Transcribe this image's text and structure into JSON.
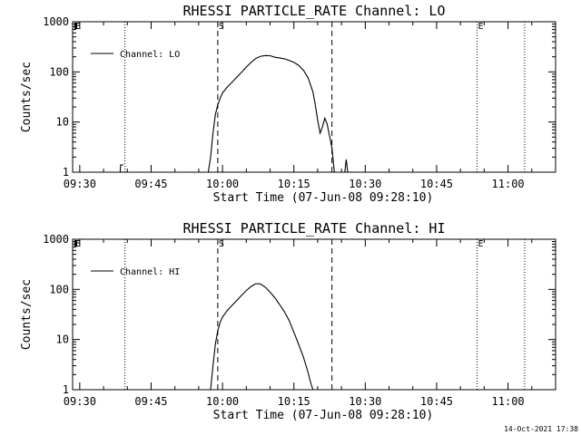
{
  "chart_data": [
    {
      "type": "line",
      "title": "RHESSI PARTICLE_RATE Channel: LO",
      "xlabel": "Start Time (07-Jun-08 09:28:10)",
      "ylabel": "Counts/sec",
      "yscale": "log",
      "ylim": [
        1,
        1000
      ],
      "y_ticks": [
        "1",
        "10",
        "100",
        "1000"
      ],
      "xlim_minutes": [
        -1.5,
        100
      ],
      "x_ticks": [
        "09:30",
        "09:45",
        "10:00",
        "10:15",
        "10:30",
        "10:45",
        "11:00"
      ],
      "legend": {
        "label": "Channel: LO",
        "position": "top-left"
      },
      "markers": [
        {
          "minute": 9.5,
          "style": "dotted",
          "label": ""
        },
        {
          "minute": 29,
          "style": "dashed",
          "label": "S"
        },
        {
          "minute": 53,
          "style": "dashed",
          "label": ""
        },
        {
          "minute": 83.5,
          "style": "dotted",
          "label": "E"
        },
        {
          "minute": 93.5,
          "style": "dotted",
          "label": ""
        }
      ],
      "corner_labels": [
        "E",
        "E",
        "E"
      ],
      "series": [
        {
          "name": "Channel: LO",
          "segments": [
            {
              "minutes": [
                8.5,
                8.6,
                9.1
              ],
              "values": [
                1,
                1.4,
                1.4
              ]
            },
            {
              "minutes": [
                27,
                27.5,
                28,
                28.5,
                29,
                29.5,
                30,
                31,
                32,
                33,
                34,
                35,
                36,
                37,
                38,
                39,
                40,
                41,
                42,
                43,
                44,
                45,
                46,
                47,
                48,
                49,
                49.5,
                50,
                50.5,
                51,
                51.5,
                52,
                53,
                53.5
              ],
              "values": [
                1,
                2,
                6,
                14,
                22,
                30,
                38,
                50,
                62,
                78,
                98,
                125,
                155,
                185,
                205,
                212,
                210,
                196,
                190,
                182,
                170,
                155,
                135,
                108,
                76,
                40,
                22,
                11,
                6,
                8,
                12,
                9,
                3,
                1
              ]
            },
            {
              "minutes": [
                55.7,
                56,
                56.3
              ],
              "values": [
                1,
                1.8,
                1
              ]
            }
          ]
        }
      ]
    },
    {
      "type": "line",
      "title": "RHESSI PARTICLE_RATE Channel: HI",
      "xlabel": "Start Time (07-Jun-08 09:28:10)",
      "ylabel": "Counts/sec",
      "yscale": "log",
      "ylim": [
        1,
        1000
      ],
      "y_ticks": [
        "1",
        "10",
        "100",
        "1000"
      ],
      "xlim_minutes": [
        -1.5,
        100
      ],
      "x_ticks": [
        "09:30",
        "09:45",
        "10:00",
        "10:15",
        "10:30",
        "10:45",
        "11:00"
      ],
      "legend": {
        "label": "Channel: HI",
        "position": "top-left"
      },
      "markers": [
        {
          "minute": 9.5,
          "style": "dotted",
          "label": ""
        },
        {
          "minute": 29,
          "style": "dashed",
          "label": "S"
        },
        {
          "minute": 53,
          "style": "dashed",
          "label": ""
        },
        {
          "minute": 83.5,
          "style": "dotted",
          "label": "E"
        },
        {
          "minute": 93.5,
          "style": "dotted",
          "label": ""
        }
      ],
      "corner_labels": [
        "E",
        "E",
        "E"
      ],
      "series": [
        {
          "name": "Channel: HI",
          "segments": [
            {
              "minutes": [
                27.5,
                28,
                28.5,
                29,
                29.5,
                30,
                31,
                32,
                33,
                34,
                35,
                36,
                37,
                38,
                39,
                40,
                41,
                42,
                43,
                44,
                45,
                46,
                47,
                48,
                48.5,
                49
              ],
              "values": [
                1,
                3,
                8,
                15,
                22,
                28,
                38,
                48,
                60,
                76,
                95,
                115,
                130,
                128,
                110,
                88,
                68,
                50,
                36,
                24,
                14,
                8,
                4.5,
                2.2,
                1.4,
                1
              ]
            }
          ]
        }
      ]
    }
  ],
  "timestamp": "14-Oct-2021 17:38"
}
